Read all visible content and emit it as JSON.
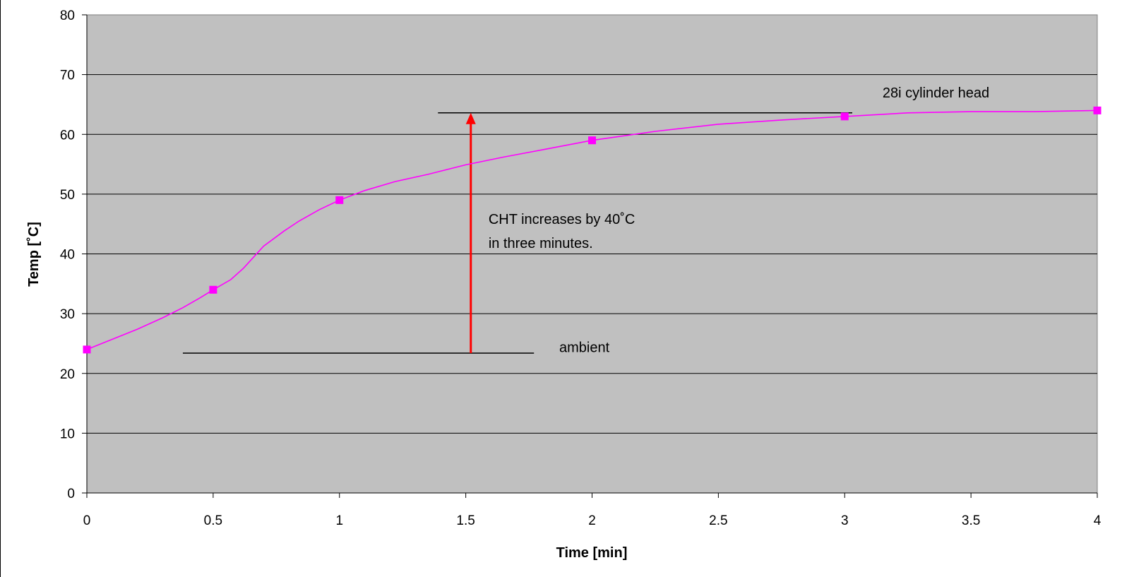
{
  "chart_data": {
    "type": "line",
    "xlabel": "Time [min]",
    "ylabel": "Temp [˚C]",
    "xlim": [
      0,
      4
    ],
    "ylim": [
      0,
      80
    ],
    "x_ticks": [
      "0",
      "0.5",
      "1",
      "1.5",
      "2",
      "2.5",
      "3",
      "3.5",
      "4"
    ],
    "y_ticks": [
      "0",
      "10",
      "20",
      "30",
      "40",
      "50",
      "60",
      "70",
      "80"
    ],
    "grid": "horizontal",
    "plot_background": "#c0c0c0",
    "series": [
      {
        "color": "#ff00ff",
        "markers": [
          {
            "x": 0,
            "y": 24
          },
          {
            "x": 0.5,
            "y": 34
          },
          {
            "x": 1,
            "y": 49
          },
          {
            "x": 2,
            "y": 59
          },
          {
            "x": 3,
            "y": 63
          },
          {
            "x": 4,
            "y": 64
          }
        ],
        "curve": [
          {
            "x": 0,
            "y": 24
          },
          {
            "x": 0.1,
            "y": 25.7
          },
          {
            "x": 0.2,
            "y": 27.4
          },
          {
            "x": 0.3,
            "y": 29.3
          },
          {
            "x": 0.38,
            "y": 31
          },
          {
            "x": 0.45,
            "y": 32.7
          },
          {
            "x": 0.5,
            "y": 34
          },
          {
            "x": 0.57,
            "y": 35.7
          },
          {
            "x": 0.62,
            "y": 37.6
          },
          {
            "x": 0.7,
            "y": 41.3
          },
          {
            "x": 0.78,
            "y": 43.8
          },
          {
            "x": 0.84,
            "y": 45.5
          },
          {
            "x": 0.92,
            "y": 47.4
          },
          {
            "x": 1,
            "y": 49
          },
          {
            "x": 1.1,
            "y": 50.6
          },
          {
            "x": 1.22,
            "y": 52.1
          },
          {
            "x": 1.35,
            "y": 53.3
          },
          {
            "x": 1.5,
            "y": 54.9
          },
          {
            "x": 1.65,
            "y": 56.2
          },
          {
            "x": 1.8,
            "y": 57.4
          },
          {
            "x": 2,
            "y": 59
          },
          {
            "x": 2.25,
            "y": 60.5
          },
          {
            "x": 2.5,
            "y": 61.7
          },
          {
            "x": 2.75,
            "y": 62.4
          },
          {
            "x": 3,
            "y": 63
          },
          {
            "x": 3.25,
            "y": 63.6
          },
          {
            "x": 3.5,
            "y": 63.8
          },
          {
            "x": 3.75,
            "y": 63.8
          },
          {
            "x": 4,
            "y": 64
          }
        ]
      }
    ],
    "reference_lines": [
      {
        "x_start": 0.38,
        "x_end": 1.77,
        "y": 23.4,
        "color": "#000000"
      },
      {
        "x_start": 1.39,
        "x_end": 3.03,
        "y": 63.6,
        "color": "#000000"
      }
    ],
    "arrow": {
      "x": 1.52,
      "y_start": 23.4,
      "y_end": 63.6,
      "color": "#ff0000"
    },
    "annotations": [
      {
        "text": "28i cylinder head",
        "x": 3.15,
        "y": 66.2
      },
      {
        "text": "CHT increases by 40˚C",
        "x": 1.59,
        "y": 45.0
      },
      {
        "text": "in three minutes.",
        "x": 1.59,
        "y": 41.0
      },
      {
        "text": "ambient",
        "x": 1.87,
        "y": 23.6
      }
    ]
  }
}
